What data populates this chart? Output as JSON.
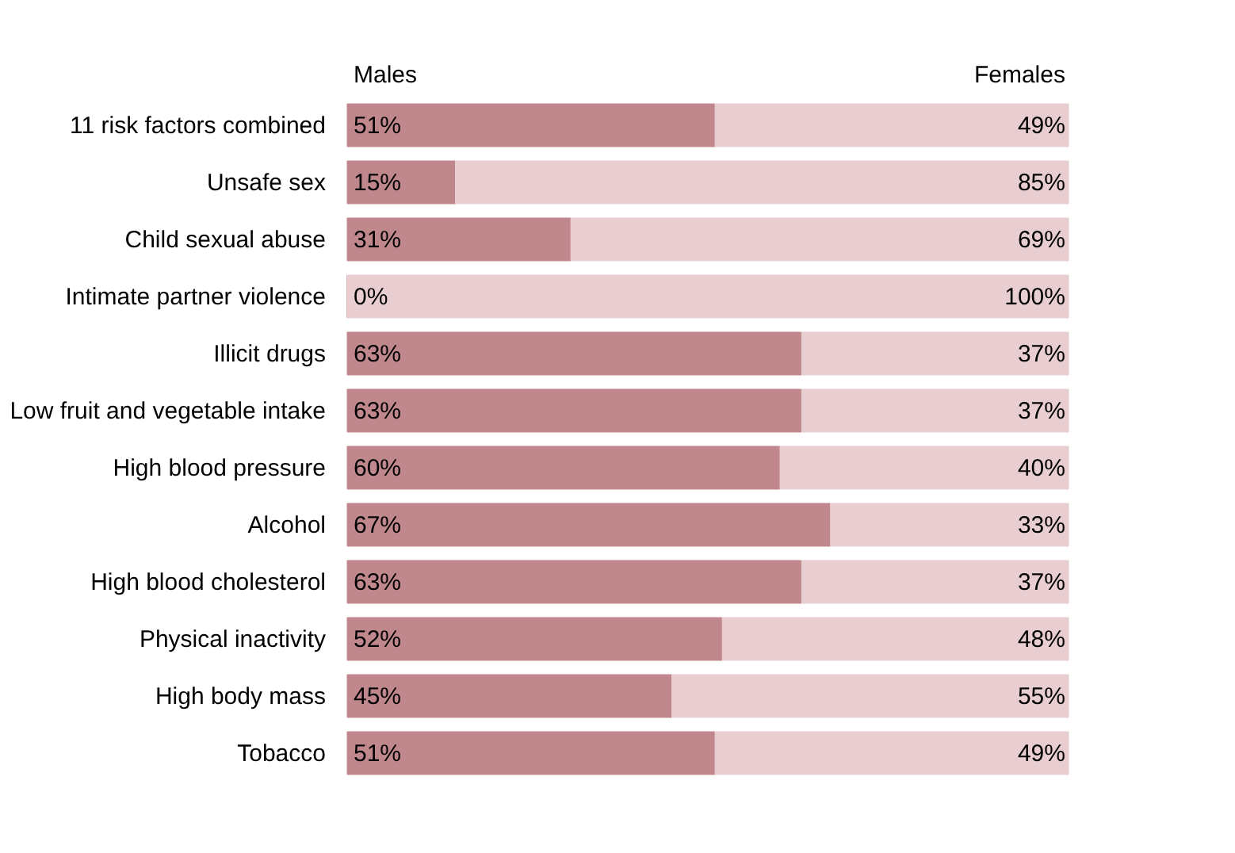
{
  "chart_data": {
    "type": "bar",
    "orientation": "horizontal",
    "stacked": true,
    "legend": "top",
    "tick_labels": "y",
    "grid": false,
    "xlim": [
      0,
      100
    ],
    "categories": [
      "11 risk factors combined",
      "Unsafe sex",
      "Child sexual abuse",
      "Intimate partner violence",
      "Illicit drugs",
      "Low fruit and vegetable intake",
      "High blood pressure",
      "Alcohol",
      "High blood cholesterol",
      "Physical inactivity",
      "High body mass",
      "Tobacco"
    ],
    "series": [
      {
        "name": "Males",
        "color": "#c0888c",
        "values": [
          51,
          15,
          31,
          0,
          63,
          63,
          60,
          67,
          63,
          52,
          45,
          51
        ],
        "value_labels": [
          "51%",
          "15%",
          "31%",
          "0%",
          "63%",
          "63%",
          "60%",
          "67%",
          "63%",
          "52%",
          "45%",
          "51%"
        ]
      },
      {
        "name": "Females",
        "color": "#e8cdd1",
        "values": [
          49,
          85,
          69,
          100,
          37,
          37,
          40,
          33,
          37,
          48,
          55,
          49
        ],
        "value_labels": [
          "49%",
          "85%",
          "69%",
          "100%",
          "37%",
          "37%",
          "40%",
          "33%",
          "37%",
          "48%",
          "55%",
          "49%"
        ]
      }
    ]
  }
}
